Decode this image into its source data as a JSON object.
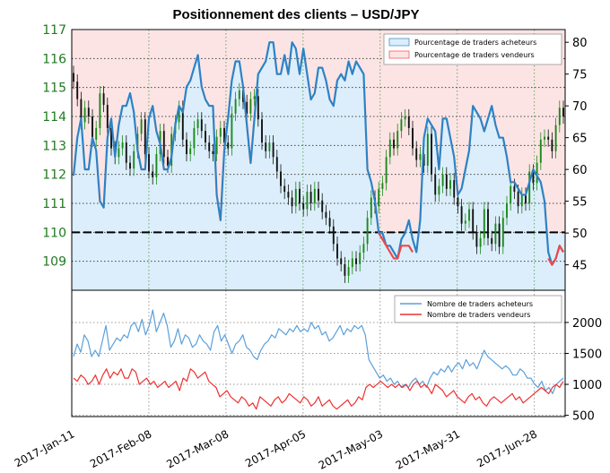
{
  "chart_data": {
    "title": "Positionnement des clients – USD/JPY",
    "x_ticks": [
      "2017-Jan-11",
      "2017-Feb-08",
      "2017-Mar-08",
      "2017-Apr-05",
      "2017-May-03",
      "2017-May-31",
      "2017-Jun-28"
    ],
    "colors": {
      "buyers": "#2e82c4",
      "sellers": "#f04848",
      "buyers_fill": "#dceefb",
      "sellers_fill": "#fde4e4",
      "candle_up": "#1a8a1a",
      "candle_down": "#111111",
      "price_tick": "#1f7a1f"
    },
    "panels": [
      {
        "type": "line",
        "left_axis": {
          "label": "",
          "ticks": [
            109,
            110,
            111,
            112,
            113,
            114,
            115,
            116,
            117
          ],
          "range": [
            108,
            117
          ]
        },
        "right_axis": {
          "label": "",
          "ticks": [
            45,
            50,
            55,
            60,
            65,
            70,
            75,
            80
          ],
          "range": [
            41,
            82
          ]
        },
        "legend": {
          "position": "top-right",
          "entries": [
            "Pourcentage de traders acheteurs",
            "Pourcentage de traders vendeurs"
          ]
        },
        "reference_line": 110,
        "price_close_usdjpy": [
          115.2,
          114.6,
          113.8,
          114.3,
          114.0,
          113.2,
          113.6,
          114.8,
          114.4,
          113.6,
          112.9,
          112.6,
          112.9,
          113.1,
          112.4,
          112.2,
          112.8,
          113.4,
          113.9,
          112.7,
          112.1,
          111.9,
          112.7,
          113.5,
          112.6,
          112.3,
          113.4,
          113.8,
          114.3,
          113.2,
          112.7,
          112.9,
          113.6,
          113.9,
          113.5,
          113.1,
          112.8,
          112.7,
          113.3,
          113.6,
          113.1,
          112.9,
          114.1,
          114.6,
          114.9,
          114.5,
          114.1,
          114.6,
          114.7,
          113.9,
          113.1,
          112.8,
          113.1,
          112.6,
          112.1,
          111.6,
          111.4,
          111.2,
          110.9,
          111.5,
          111.0,
          110.8,
          111.4,
          111.0,
          111.5,
          111.1,
          110.7,
          110.5,
          110.2,
          109.6,
          109.1,
          108.9,
          108.5,
          108.8,
          109.1,
          108.9,
          109.3,
          109.6,
          110.5,
          111.2,
          110.9,
          111.5,
          111.7,
          112.6,
          113.2,
          112.9,
          113.5,
          113.9,
          114.0,
          113.6,
          112.9,
          112.5,
          112.7,
          112.3,
          113.4,
          112.0,
          111.3,
          111.6,
          112.0,
          111.5,
          111.8,
          111.2,
          110.9,
          110.3,
          110.4,
          110.8,
          110.0,
          109.5,
          109.8,
          110.8,
          109.8,
          109.6,
          110.3,
          109.5,
          110.5,
          111.0,
          111.6,
          111.4,
          110.9,
          111.3,
          111.0,
          112.1,
          111.7,
          112.4,
          113.2,
          113.3,
          113.2,
          112.8,
          113.7,
          114.3,
          114.0
        ],
        "series": [
          {
            "name": "Pourcentage de traders acheteurs",
            "color": "#2e82c4",
            "values": [
              59,
              65,
              68,
              60,
              60,
              65,
              63,
              55,
              54,
              65,
              68,
              62,
              67,
              70,
              70,
              72,
              69,
              63,
              60,
              60,
              68,
              70,
              66,
              64,
              60,
              60,
              62,
              67,
              70,
              69,
              73,
              74,
              76,
              78,
              73,
              71,
              70,
              70,
              56,
              52,
              63,
              68,
              74,
              77,
              77,
              73,
              67,
              61,
              68,
              75,
              76,
              77,
              80,
              80,
              75,
              75,
              78,
              75,
              80,
              79,
              75,
              79,
              75,
              71,
              72,
              76,
              76,
              74,
              71,
              70,
              74,
              75,
              74,
              77,
              75,
              77,
              76,
              75,
              60,
              58,
              55,
              50,
              50,
              48,
              48,
              47,
              46,
              49,
              50,
              52,
              49,
              47,
              52,
              65,
              68,
              67,
              66,
              60,
              68,
              68,
              65,
              62,
              56,
              57,
              60,
              63,
              70,
              69,
              68,
              66,
              68,
              70,
              67,
              65,
              65,
              62,
              58,
              58,
              57,
              56,
              56,
              58,
              60,
              59,
              58,
              55,
              47,
              45,
              46,
              48,
              47
            ]
          },
          {
            "name": "Pourcentage de traders vendeurs",
            "color": "#f04848",
            "values": [
              null,
              null,
              null,
              null,
              null,
              null,
              null,
              null,
              null,
              null,
              null,
              null,
              null,
              null,
              null,
              null,
              null,
              null,
              null,
              null,
              null,
              null,
              null,
              null,
              null,
              null,
              null,
              null,
              null,
              null,
              null,
              null,
              null,
              null,
              null,
              null,
              null,
              null,
              null,
              null,
              null,
              null,
              null,
              null,
              null,
              null,
              null,
              null,
              null,
              null,
              null,
              null,
              null,
              null,
              null,
              null,
              null,
              null,
              null,
              null,
              null,
              null,
              null,
              null,
              null,
              null,
              null,
              null,
              null,
              null,
              null,
              null,
              null,
              null,
              null,
              null,
              null,
              null,
              null,
              null,
              null,
              50,
              49,
              48,
              47,
              46,
              46,
              48,
              48,
              48,
              47,
              null,
              null,
              null,
              null,
              null,
              null,
              null,
              null,
              null,
              null,
              null,
              null,
              null,
              null,
              null,
              null,
              null,
              null,
              null,
              null,
              null,
              null,
              null,
              null,
              null,
              null,
              null,
              null,
              null,
              null,
              null,
              null,
              null,
              null,
              null,
              46,
              45,
              46,
              48,
              47
            ]
          }
        ]
      },
      {
        "type": "line",
        "left_axis": {
          "label": "",
          "ticks": [],
          "range": [
            500,
            2500
          ]
        },
        "right_axis": {
          "label": "",
          "ticks": [
            500,
            1000,
            1500,
            2000
          ],
          "range": [
            480,
            2520
          ]
        },
        "legend": {
          "position": "top-right",
          "entries": [
            "Nombre de traders acheteurs",
            "Nombre de traders vendeurs"
          ]
        },
        "series": [
          {
            "name": "Nombre de traders acheteurs",
            "color": "#5aa0dc",
            "values": [
              1450,
              1650,
              1520,
              1800,
              1700,
              1450,
              1550,
              1450,
              1700,
              1950,
              1550,
              1650,
              1750,
              1700,
              1800,
              1750,
              1950,
              2000,
              1850,
              2050,
              1800,
              1950,
              2200,
              1850,
              2000,
              2150,
              1950,
              1600,
              1700,
              1900,
              1650,
              1800,
              1750,
              1600,
              1650,
              1800,
              1700,
              1650,
              1550,
              1850,
              1950,
              1700,
              1800,
              1650,
              1500,
              1650,
              1700,
              1800,
              1600,
              1550,
              1450,
              1400,
              1550,
              1650,
              1700,
              1800,
              1750,
              1900,
              1850,
              1800,
              1900,
              1850,
              1950,
              1850,
              1900,
              1850,
              2000,
              1900,
              1950,
              1800,
              1850,
              1700,
              1750,
              1850,
              1950,
              1800,
              1900,
              1850,
              1950,
              1900,
              1950,
              1800,
              1400,
              1300,
              1200,
              1100,
              1150,
              1050,
              1100,
              1000,
              1050,
              950,
              1000,
              950,
              1050,
              1100,
              1000,
              1050,
              950,
              1100,
              1200,
              1150,
              1250,
              1200,
              1300,
              1200,
              1300,
              1350,
              1250,
              1400,
              1300,
              1350,
              1250,
              1400,
              1550,
              1450,
              1400,
              1350,
              1300,
              1250,
              1300,
              1250,
              1150,
              1150,
              1250,
              1200,
              1100,
              1100,
              1000,
              950,
              1050,
              900,
              950,
              850,
              1000,
              1050,
              1100
            ]
          },
          {
            "name": "Nombre de traders vendeurs",
            "color": "#ee3030",
            "values": [
              1100,
              1050,
              1150,
              1100,
              1000,
              1050,
              1150,
              1000,
              1150,
              1250,
              1100,
              1200,
              1150,
              1250,
              1100,
              1100,
              1250,
              1200,
              1000,
              1050,
              1100,
              1000,
              1050,
              950,
              1000,
              1050,
              950,
              1000,
              1050,
              900,
              1100,
              1050,
              1250,
              1200,
              1100,
              1150,
              1200,
              1050,
              1000,
              950,
              800,
              850,
              900,
              800,
              750,
              700,
              800,
              750,
              650,
              700,
              600,
              800,
              750,
              700,
              650,
              750,
              800,
              700,
              750,
              850,
              800,
              750,
              700,
              800,
              750,
              650,
              700,
              800,
              650,
              700,
              750,
              650,
              600,
              650,
              700,
              750,
              650,
              700,
              800,
              750,
              950,
              1000,
              950,
              1000,
              1050,
              1000,
              950,
              1000,
              950,
              1000,
              950,
              1000,
              900,
              1000,
              1050,
              950,
              1000,
              950,
              850,
              1000,
              950,
              900,
              800,
              850,
              900,
              800,
              750,
              700,
              800,
              850,
              750,
              800,
              700,
              650,
              750,
              800,
              750,
              700,
              750,
              800,
              850,
              750,
              800,
              700,
              750,
              800,
              850,
              900,
              950,
              900,
              850,
              950,
              1000,
              950,
              1050
            ]
          }
        ]
      }
    ]
  }
}
